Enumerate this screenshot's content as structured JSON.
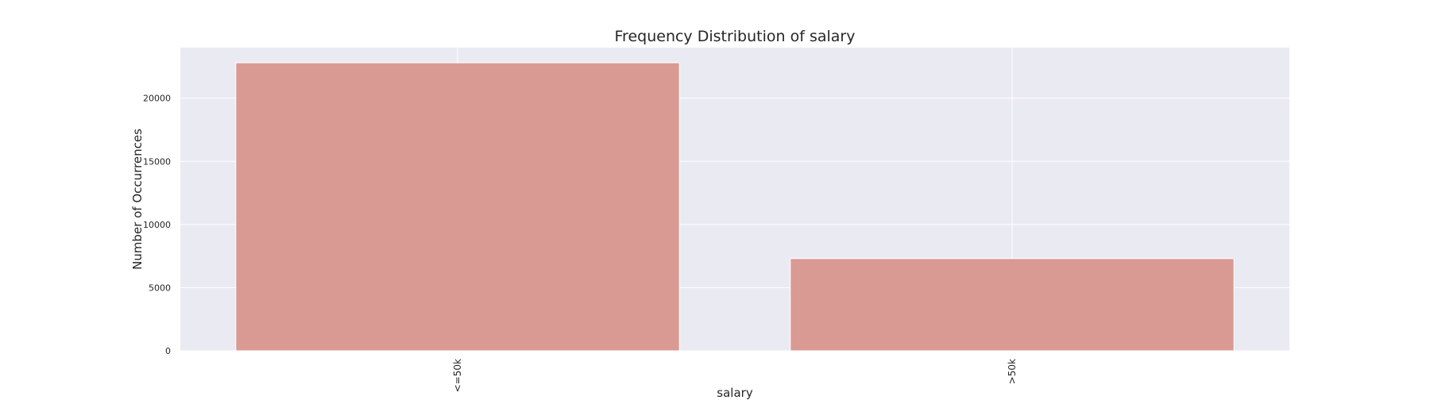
{
  "chart_data": {
    "type": "bar",
    "title": "Frequency Distribution of salary",
    "xlabel": "salary",
    "ylabel": "Number of Occurrences",
    "categories": [
      "<=50k",
      ">50k"
    ],
    "values": [
      22800,
      7300
    ],
    "ylim": [
      0,
      24000
    ],
    "yticks": [
      0,
      5000,
      10000,
      15000,
      20000
    ],
    "ytick_labels": [
      "0",
      "5000",
      "10000",
      "15000",
      "20000"
    ],
    "grid": true,
    "bar_color": "#d99a94",
    "plot_bg_color": "#eaeaf2",
    "grid_color": "#ffffff"
  }
}
